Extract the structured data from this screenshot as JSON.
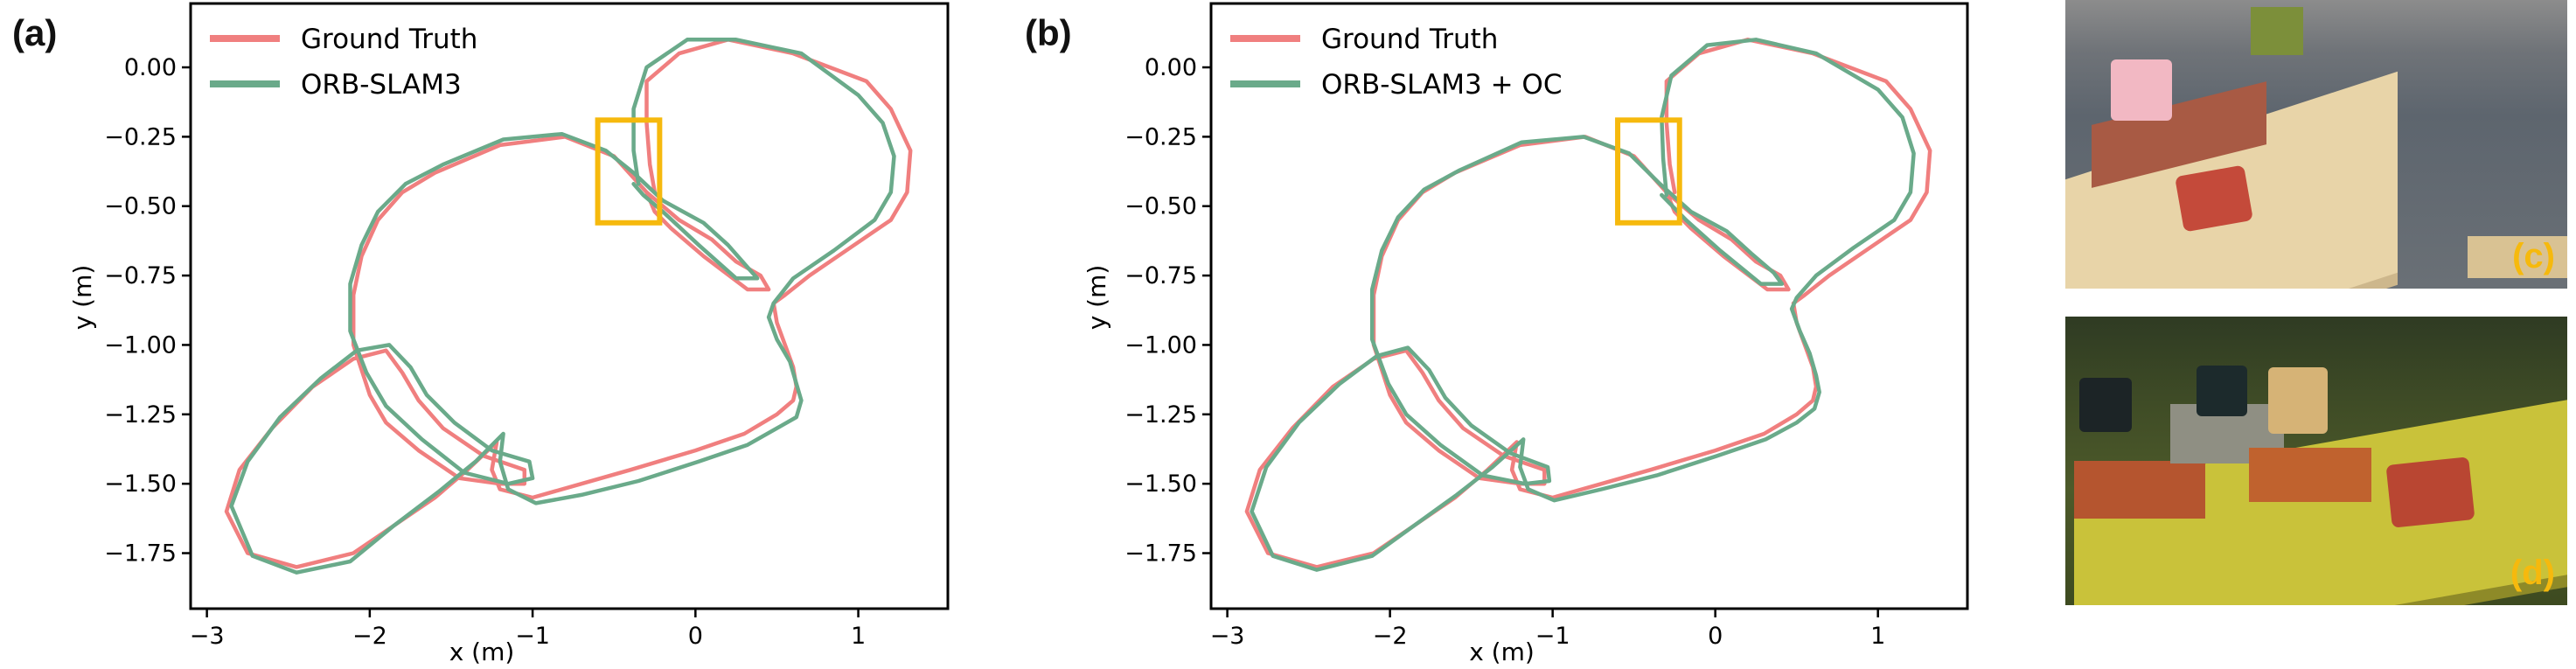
{
  "panels": {
    "a": {
      "label": "(a)"
    },
    "b": {
      "label": "(b)"
    },
    "c": {
      "label": "(c)"
    },
    "d": {
      "label": "(d)"
    }
  },
  "colors": {
    "ground_truth": "#f07f7f",
    "estimate": "#6aaa8a",
    "highlight_box": "#f6b90d",
    "photo_label": "#f6b90d"
  },
  "chart_data": [
    {
      "type": "line",
      "panel": "a",
      "xlabel": "x (m)",
      "ylabel": "y (m)",
      "xlim": [
        -3.1,
        1.55
      ],
      "ylim": [
        -1.95,
        0.23
      ],
      "xticks": [
        -3,
        -2,
        -1,
        0,
        1
      ],
      "yticks": [
        0.0,
        -0.25,
        -0.5,
        -0.75,
        -1.0,
        -1.25,
        -1.5,
        -1.75
      ],
      "xtick_labels": [
        "−3",
        "−2",
        "−1",
        "0",
        "1"
      ],
      "ytick_labels": [
        "0.00",
        "−0.25",
        "−0.50",
        "−0.75",
        "−1.00",
        "−1.25",
        "−1.50",
        "−1.75"
      ],
      "grid": false,
      "legend_position": "top-left",
      "highlight_box": {
        "x0": -0.6,
        "x1": -0.22,
        "y0": -0.56,
        "y1": -0.19
      },
      "series": [
        {
          "name": "Ground Truth",
          "x": [
            -0.25,
            -0.28,
            -0.3,
            -0.3,
            -0.1,
            0.2,
            0.6,
            1.05,
            1.2,
            1.32,
            1.3,
            1.2,
            0.95,
            0.7,
            0.55,
            0.48,
            0.5,
            0.55,
            0.6,
            0.62,
            0.6,
            0.5,
            0.3,
            0.0,
            -0.4,
            -0.7,
            -1.0,
            -1.2,
            -1.25,
            -1.22,
            -1.4,
            -1.6,
            -1.85,
            -2.1,
            -2.45,
            -2.75,
            -2.88,
            -2.8,
            -2.6,
            -2.35,
            -2.1,
            -1.9,
            -1.8,
            -1.7,
            -1.55,
            -1.3,
            -1.05,
            -1.05,
            -1.2,
            -1.45,
            -1.7,
            -1.9,
            -2.0,
            -2.1,
            -2.1,
            -2.05,
            -1.95,
            -1.8,
            -1.6,
            -1.2,
            -0.8,
            -0.5,
            -0.3,
            -0.1,
            0.1,
            0.25,
            0.4,
            0.45,
            0.32,
            0.05,
            -0.15,
            -0.25,
            -0.3
          ],
          "y": [
            -0.45,
            -0.35,
            -0.2,
            -0.05,
            0.05,
            0.1,
            0.05,
            -0.05,
            -0.15,
            -0.3,
            -0.45,
            -0.55,
            -0.65,
            -0.75,
            -0.82,
            -0.85,
            -0.92,
            -1.0,
            -1.08,
            -1.15,
            -1.2,
            -1.25,
            -1.32,
            -1.38,
            -1.45,
            -1.5,
            -1.55,
            -1.52,
            -1.45,
            -1.35,
            -1.45,
            -1.55,
            -1.65,
            -1.75,
            -1.8,
            -1.75,
            -1.6,
            -1.45,
            -1.3,
            -1.15,
            -1.05,
            -1.02,
            -1.1,
            -1.2,
            -1.3,
            -1.4,
            -1.45,
            -1.5,
            -1.5,
            -1.48,
            -1.38,
            -1.28,
            -1.18,
            -1.0,
            -0.82,
            -0.68,
            -0.55,
            -0.45,
            -0.38,
            -0.28,
            -0.25,
            -0.32,
            -0.45,
            -0.55,
            -0.62,
            -0.7,
            -0.75,
            -0.8,
            -0.8,
            -0.68,
            -0.58,
            -0.52,
            -0.45
          ]
        },
        {
          "name": "ORB-SLAM3",
          "x": [
            -0.35,
            -0.38,
            -0.38,
            -0.3,
            -0.05,
            0.25,
            0.65,
            1.0,
            1.15,
            1.22,
            1.2,
            1.1,
            0.85,
            0.6,
            0.48,
            0.45,
            0.5,
            0.58,
            0.62,
            0.65,
            0.62,
            0.5,
            0.32,
            0.02,
            -0.35,
            -0.7,
            -0.98,
            -1.15,
            -1.2,
            -1.18,
            -1.35,
            -1.58,
            -1.85,
            -2.12,
            -2.45,
            -2.72,
            -2.85,
            -2.75,
            -2.55,
            -2.3,
            -2.08,
            -1.88,
            -1.75,
            -1.65,
            -1.48,
            -1.25,
            -1.02,
            -1.0,
            -1.15,
            -1.42,
            -1.68,
            -1.9,
            -2.02,
            -2.12,
            -2.12,
            -2.05,
            -1.95,
            -1.78,
            -1.55,
            -1.18,
            -0.82,
            -0.55,
            -0.38,
            -0.2,
            0.05,
            0.2,
            0.32,
            0.38,
            0.25,
            0.02,
            -0.2,
            -0.32,
            -0.38
          ],
          "y": [
            -0.42,
            -0.3,
            -0.15,
            0.0,
            0.1,
            0.1,
            0.05,
            -0.1,
            -0.2,
            -0.32,
            -0.45,
            -0.55,
            -0.66,
            -0.76,
            -0.85,
            -0.9,
            -0.98,
            -1.06,
            -1.14,
            -1.2,
            -1.26,
            -1.3,
            -1.36,
            -1.42,
            -1.49,
            -1.54,
            -1.57,
            -1.52,
            -1.42,
            -1.32,
            -1.42,
            -1.53,
            -1.65,
            -1.78,
            -1.82,
            -1.76,
            -1.58,
            -1.42,
            -1.26,
            -1.12,
            -1.02,
            -1.0,
            -1.08,
            -1.18,
            -1.28,
            -1.38,
            -1.42,
            -1.48,
            -1.5,
            -1.46,
            -1.34,
            -1.22,
            -1.1,
            -0.95,
            -0.78,
            -0.64,
            -0.52,
            -0.42,
            -0.35,
            -0.26,
            -0.24,
            -0.3,
            -0.38,
            -0.48,
            -0.56,
            -0.64,
            -0.72,
            -0.76,
            -0.76,
            -0.64,
            -0.52,
            -0.46,
            -0.42
          ]
        }
      ]
    },
    {
      "type": "line",
      "panel": "b",
      "xlabel": "x (m)",
      "ylabel": "y (m)",
      "xlim": [
        -3.1,
        1.55
      ],
      "ylim": [
        -1.95,
        0.23
      ],
      "xticks": [
        -3,
        -2,
        -1,
        0,
        1
      ],
      "yticks": [
        0.0,
        -0.25,
        -0.5,
        -0.75,
        -1.0,
        -1.25,
        -1.5,
        -1.75
      ],
      "xtick_labels": [
        "−3",
        "−2",
        "−1",
        "0",
        "1"
      ],
      "ytick_labels": [
        "0.00",
        "−0.25",
        "−0.50",
        "−0.75",
        "−1.00",
        "−1.25",
        "−1.50",
        "−1.75"
      ],
      "grid": false,
      "legend_position": "top-left",
      "highlight_box": {
        "x0": -0.6,
        "x1": -0.22,
        "y0": -0.56,
        "y1": -0.19
      },
      "series": [
        {
          "name": "Ground Truth",
          "x": [
            -0.25,
            -0.28,
            -0.3,
            -0.3,
            -0.1,
            0.2,
            0.6,
            1.05,
            1.2,
            1.32,
            1.3,
            1.2,
            0.95,
            0.7,
            0.55,
            0.48,
            0.5,
            0.55,
            0.6,
            0.62,
            0.6,
            0.5,
            0.3,
            0.0,
            -0.4,
            -0.7,
            -1.0,
            -1.2,
            -1.25,
            -1.22,
            -1.4,
            -1.6,
            -1.85,
            -2.1,
            -2.45,
            -2.75,
            -2.88,
            -2.8,
            -2.6,
            -2.35,
            -2.1,
            -1.9,
            -1.8,
            -1.7,
            -1.55,
            -1.3,
            -1.05,
            -1.05,
            -1.2,
            -1.45,
            -1.7,
            -1.9,
            -2.0,
            -2.1,
            -2.1,
            -2.05,
            -1.95,
            -1.8,
            -1.6,
            -1.2,
            -0.8,
            -0.5,
            -0.3,
            -0.1,
            0.1,
            0.25,
            0.4,
            0.45,
            0.32,
            0.05,
            -0.15,
            -0.25,
            -0.3
          ],
          "y": [
            -0.45,
            -0.35,
            -0.2,
            -0.05,
            0.05,
            0.1,
            0.05,
            -0.05,
            -0.15,
            -0.3,
            -0.45,
            -0.55,
            -0.65,
            -0.75,
            -0.82,
            -0.85,
            -0.92,
            -1.0,
            -1.08,
            -1.15,
            -1.2,
            -1.25,
            -1.32,
            -1.38,
            -1.45,
            -1.5,
            -1.55,
            -1.52,
            -1.45,
            -1.35,
            -1.45,
            -1.55,
            -1.65,
            -1.75,
            -1.8,
            -1.75,
            -1.6,
            -1.45,
            -1.3,
            -1.15,
            -1.05,
            -1.02,
            -1.1,
            -1.2,
            -1.3,
            -1.4,
            -1.45,
            -1.5,
            -1.5,
            -1.48,
            -1.38,
            -1.28,
            -1.18,
            -1.0,
            -0.82,
            -0.68,
            -0.55,
            -0.45,
            -0.38,
            -0.28,
            -0.25,
            -0.32,
            -0.45,
            -0.55,
            -0.62,
            -0.7,
            -0.75,
            -0.8,
            -0.8,
            -0.68,
            -0.58,
            -0.52,
            -0.45
          ]
        },
        {
          "name": "ORB-SLAM3 + OC",
          "x": [
            -0.3,
            -0.32,
            -0.33,
            -0.27,
            -0.05,
            0.25,
            0.62,
            1.0,
            1.15,
            1.22,
            1.2,
            1.1,
            0.85,
            0.62,
            0.5,
            0.47,
            0.52,
            0.58,
            0.62,
            0.64,
            0.61,
            0.5,
            0.31,
            0.01,
            -0.36,
            -0.7,
            -0.99,
            -1.15,
            -1.2,
            -1.18,
            -1.37,
            -1.59,
            -1.85,
            -2.11,
            -2.45,
            -2.72,
            -2.85,
            -2.76,
            -2.56,
            -2.31,
            -2.08,
            -1.89,
            -1.76,
            -1.66,
            -1.5,
            -1.26,
            -1.03,
            -1.02,
            -1.17,
            -1.43,
            -1.69,
            -1.9,
            -2.01,
            -2.11,
            -2.11,
            -2.05,
            -1.95,
            -1.79,
            -1.57,
            -1.19,
            -0.81,
            -0.53,
            -0.34,
            -0.15,
            0.07,
            0.22,
            0.36,
            0.41,
            0.28,
            0.03,
            -0.18,
            -0.28,
            -0.33
          ],
          "y": [
            -0.46,
            -0.33,
            -0.18,
            -0.03,
            0.08,
            0.1,
            0.05,
            -0.08,
            -0.18,
            -0.31,
            -0.45,
            -0.55,
            -0.65,
            -0.75,
            -0.83,
            -0.87,
            -0.95,
            -1.03,
            -1.11,
            -1.17,
            -1.23,
            -1.28,
            -1.34,
            -1.4,
            -1.47,
            -1.52,
            -1.56,
            -1.52,
            -1.44,
            -1.34,
            -1.44,
            -1.54,
            -1.65,
            -1.76,
            -1.81,
            -1.76,
            -1.6,
            -1.44,
            -1.28,
            -1.14,
            -1.04,
            -1.01,
            -1.09,
            -1.19,
            -1.29,
            -1.39,
            -1.44,
            -1.49,
            -1.5,
            -1.47,
            -1.36,
            -1.25,
            -1.14,
            -0.98,
            -0.8,
            -0.66,
            -0.54,
            -0.44,
            -0.37,
            -0.27,
            -0.25,
            -0.31,
            -0.42,
            -0.52,
            -0.59,
            -0.67,
            -0.74,
            -0.78,
            -0.78,
            -0.66,
            -0.55,
            -0.49,
            -0.46
          ]
        }
      ]
    }
  ]
}
